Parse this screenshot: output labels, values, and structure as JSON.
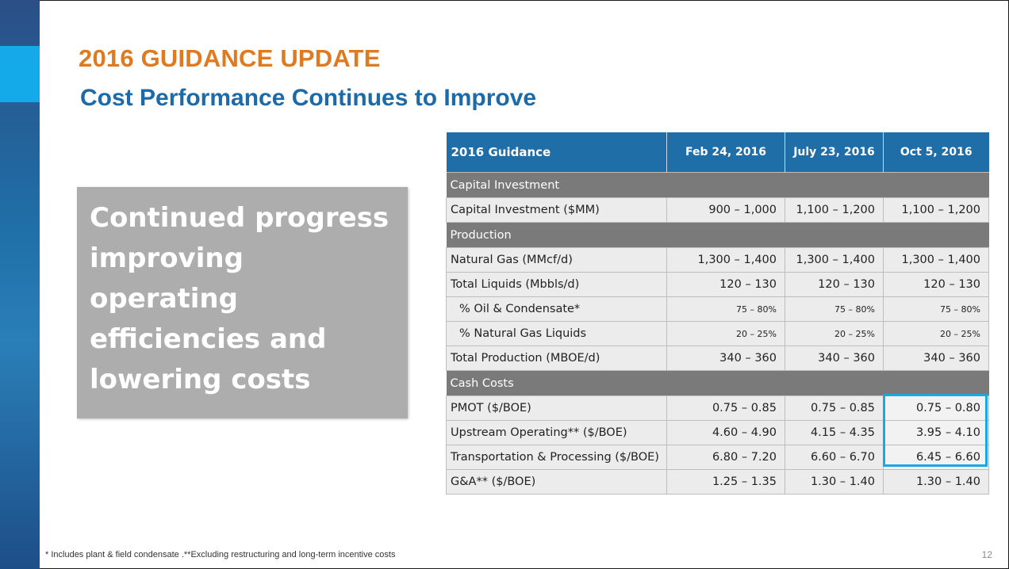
{
  "slide": {
    "title": "2016 GUIDANCE UPDATE",
    "subtitle": "Cost Performance Continues to Improve",
    "callout": "Continued progress improving operating efficiencies and lowering costs",
    "footnote": "* Includes plant & field condensate .**Excluding restructuring and long-term incentive costs",
    "page_number": "12",
    "colors": {
      "title": "#e07a1f",
      "subtitle": "#1d6aa8",
      "table_header": "#1f6ea7",
      "section_row": "#7a7a7a",
      "highlight": "#1ba7e0"
    }
  },
  "table": {
    "headers": [
      "2016 Guidance",
      "Feb 24, 2016",
      "July 23, 2016",
      "Oct 5, 2016"
    ],
    "sections": [
      {
        "name": "Capital Investment",
        "rows": [
          {
            "label": "Capital Investment ($MM)",
            "values": [
              "900 – 1,000",
              "1,100 – 1,200",
              "1,100 – 1,200"
            ]
          }
        ]
      },
      {
        "name": "Production",
        "rows": [
          {
            "label": "Natural Gas (MMcf/d)",
            "values": [
              "1,300 – 1,400",
              "1,300 – 1,400",
              "1,300 – 1,400"
            ]
          },
          {
            "label": "Total Liquids (Mbbls/d)",
            "values": [
              "120 – 130",
              "120 – 130",
              "120 – 130"
            ]
          },
          {
            "label": "% Oil & Condensate*",
            "values": [
              "75 – 80%",
              "75 – 80%",
              "75 – 80%"
            ]
          },
          {
            "label": "% Natural Gas Liquids",
            "values": [
              "20 – 25%",
              "20 – 25%",
              "20 – 25%"
            ]
          },
          {
            "label": "Total Production (MBOE/d)",
            "values": [
              "340 – 360",
              "340 – 360",
              "340 – 360"
            ]
          }
        ]
      },
      {
        "name": "Cash Costs",
        "rows": [
          {
            "label": "PMOT ($/BOE)",
            "values": [
              "0.75 – 0.85",
              "0.75 – 0.85",
              "0.75 – 0.80"
            ]
          },
          {
            "label": "Upstream Operating** ($/BOE)",
            "values": [
              "4.60 – 4.90",
              "4.15 – 4.35",
              "3.95 – 4.10"
            ]
          },
          {
            "label": "Transportation & Processing ($/BOE)",
            "values": [
              "6.80 – 7.20",
              "6.60 – 6.70",
              "6.45 – 6.60"
            ]
          },
          {
            "label": "G&A** ($/BOE)",
            "values": [
              "1.25 – 1.35",
              "1.30 – 1.40",
              "1.30 – 1.40"
            ]
          }
        ]
      }
    ]
  }
}
